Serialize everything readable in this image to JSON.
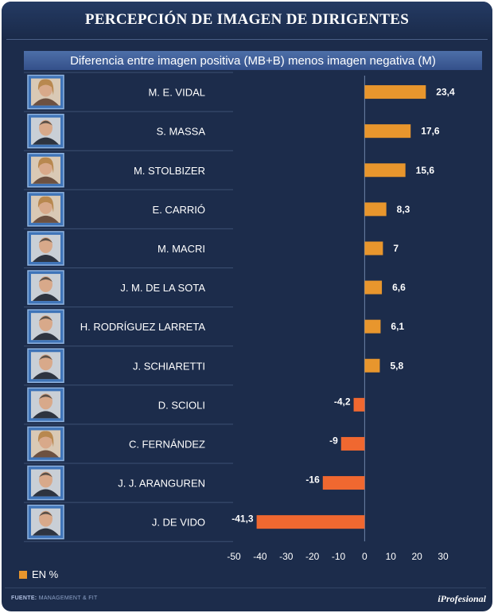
{
  "header": {
    "title": "PERCEPCIÓN DE IMAGEN DE DIRIGENTES",
    "subtitle": "Diferencia entre imagen positiva (MB+B) menos imagen negativa (M)"
  },
  "legend": {
    "label": "EN %"
  },
  "footer": {
    "source_label": "FUENTE:",
    "source_value": "MANAGEMENT & FIT",
    "brand": "iProfesional"
  },
  "colors": {
    "background": "#1c2c4b",
    "positive_bar": "#e8962d",
    "negative_bar": "#f06830",
    "text": "#ffffff"
  },
  "chart_data": {
    "type": "bar",
    "orientation": "horizontal",
    "title": "PERCEPCIÓN DE IMAGEN DE DIRIGENTES",
    "subtitle": "Diferencia entre imagen positiva (MB+B) menos imagen negativa (M)",
    "unit": "EN %",
    "categories": [
      "M. E. VIDAL",
      "S. MASSA",
      "M. STOLBIZER",
      "E. CARRIÓ",
      "M. MACRI",
      "J. M. DE LA SOTA",
      "H. RODRÍGUEZ LARRETA",
      "J. SCHIARETTI",
      "D. SCIOLI",
      "C. FERNÁNDEZ",
      "J. J. ARANGUREN",
      "J. DE VIDO"
    ],
    "values": [
      23.4,
      17.6,
      15.6,
      8.3,
      7,
      6.6,
      6.1,
      5.8,
      -4.2,
      -9,
      -16,
      -41.3
    ],
    "value_labels": [
      "23,4",
      "17,6",
      "15,6",
      "8,3",
      "7",
      "6,6",
      "6,1",
      "5,8",
      "-4,2",
      "-9",
      "-16",
      "-41,3"
    ],
    "xlim": [
      -50,
      30
    ],
    "xticks": [
      -50,
      -40,
      -30,
      -20,
      -10,
      0,
      10,
      20,
      30
    ],
    "xtick_labels": [
      "-50",
      "-40",
      "-30",
      "-20",
      "-10",
      "0",
      "10",
      "20",
      "30"
    ],
    "grid": false,
    "legend_position": "bottom-left",
    "photo_icons": [
      "woman-portrait-icon",
      "man-portrait-icon",
      "woman-portrait-icon",
      "woman-portrait-icon",
      "man-portrait-icon",
      "man-portrait-icon",
      "man-portrait-icon",
      "man-portrait-icon",
      "man-portrait-icon",
      "woman-portrait-icon",
      "man-portrait-icon",
      "man-portrait-icon"
    ]
  }
}
